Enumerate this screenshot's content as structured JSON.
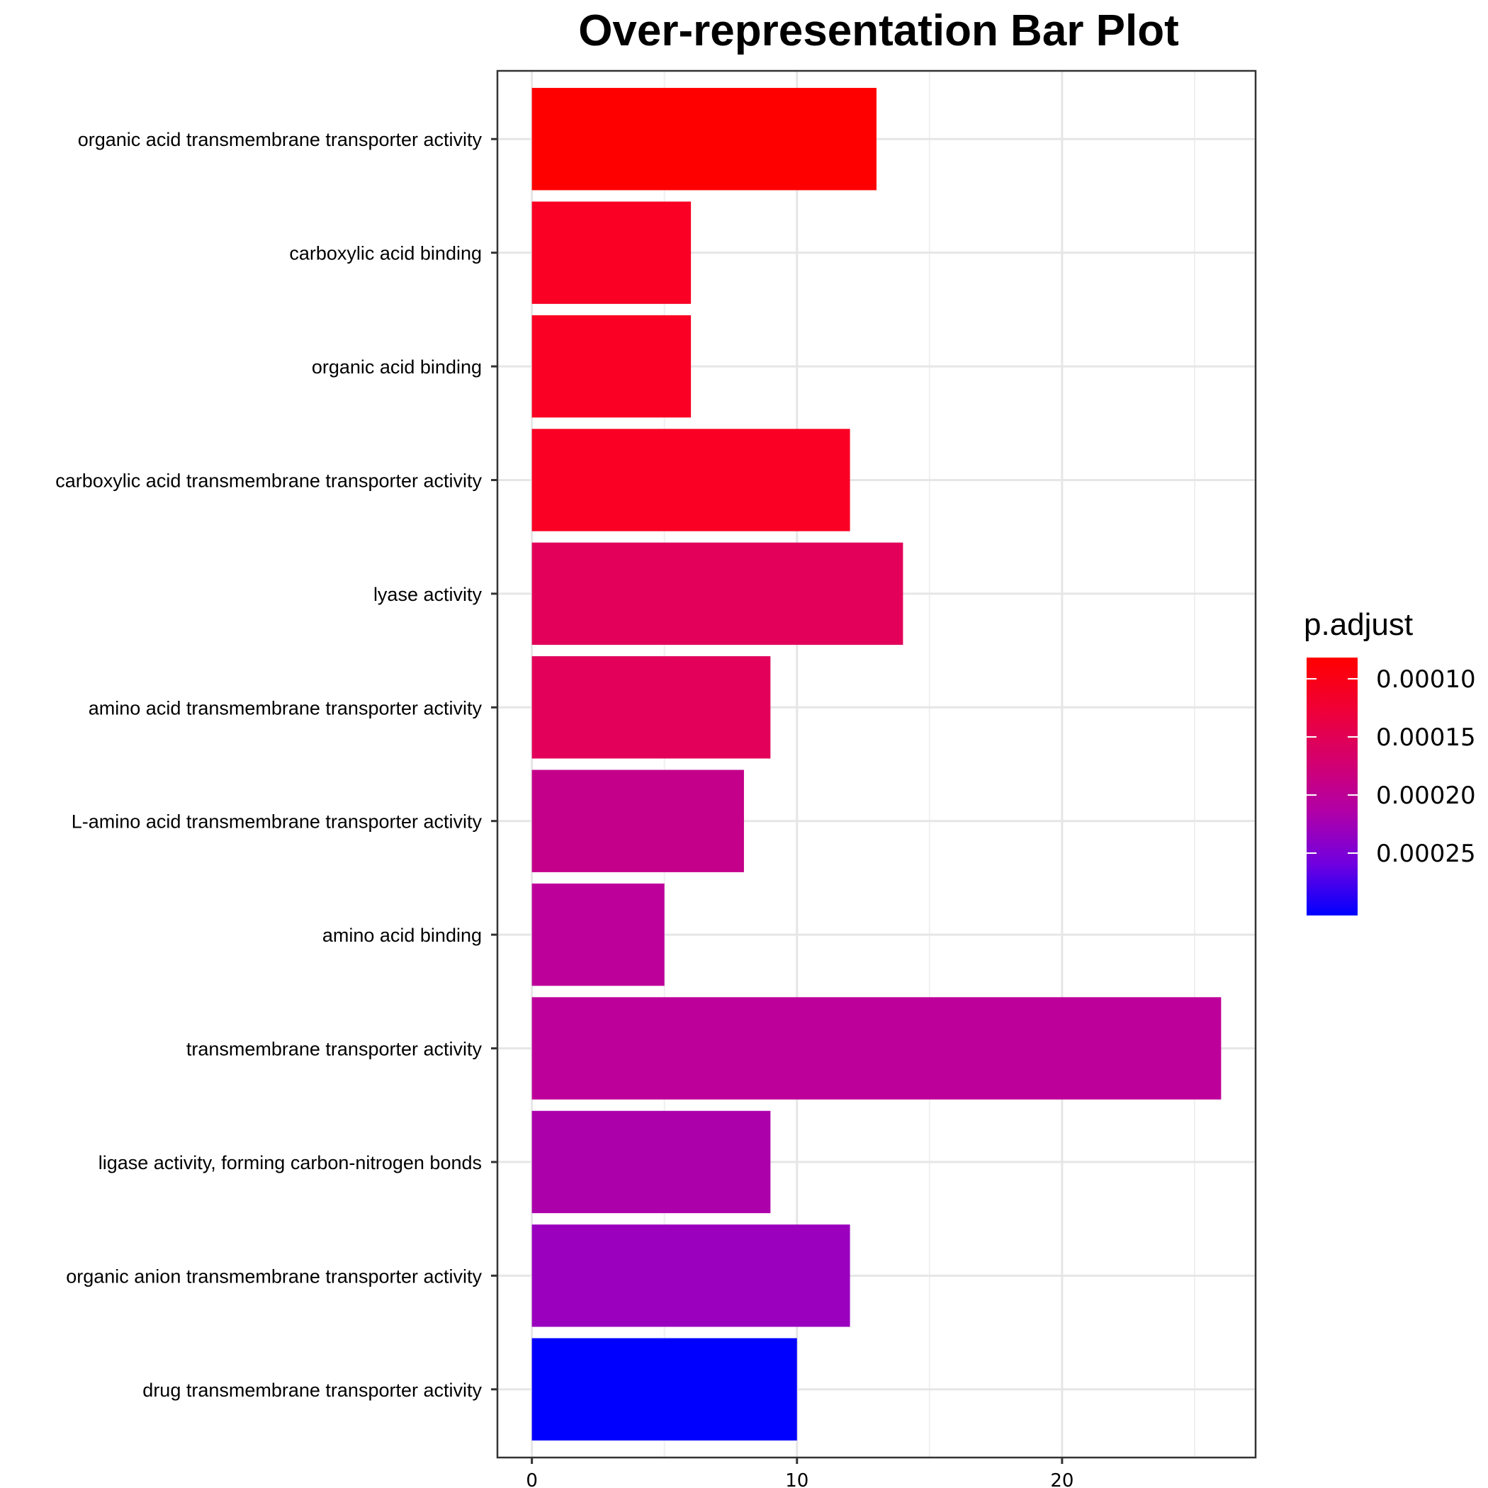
{
  "chart_data": {
    "type": "bar",
    "orientation": "horizontal",
    "title": "Over-representation Bar Plot",
    "xlabel": "",
    "ylabel": "",
    "xlim": [
      -1.3,
      27.3
    ],
    "x_ticks": [
      0,
      10,
      20
    ],
    "grid": true,
    "categories": [
      "organic acid transmembrane transporter activity",
      "carboxylic acid binding",
      "organic acid binding",
      "carboxylic acid transmembrane transporter activity",
      "lyase activity",
      "amino acid transmembrane transporter activity",
      "L-amino acid transmembrane transporter activity",
      "amino acid binding",
      "transmembrane transporter activity",
      "ligase activity, forming carbon-nitrogen bonds",
      "organic anion transmembrane transporter activity",
      "drug transmembrane transporter activity"
    ],
    "values": [
      13,
      6,
      6,
      12,
      14,
      9,
      8,
      5,
      26,
      9,
      12,
      10
    ],
    "bar_colors": [
      "#FF0000",
      "#F90024",
      "#F90024",
      "#F90024",
      "#E2005A",
      "#E2005A",
      "#C4008A",
      "#BE009A",
      "#BE009A",
      "#AC00AA",
      "#9A00BE",
      "#0000FF"
    ],
    "legend": {
      "title": "p.adjust",
      "position": "right",
      "color_high": "#FF0000",
      "color_low": "#0000FF",
      "gradient_stops": [
        "#FF0000",
        "#F00036",
        "#D4006E",
        "#B000A8",
        "#7000E0",
        "#0000FF"
      ],
      "labels": [
        "0.00010",
        "0.00015",
        "0.00020",
        "0.00025"
      ]
    }
  }
}
